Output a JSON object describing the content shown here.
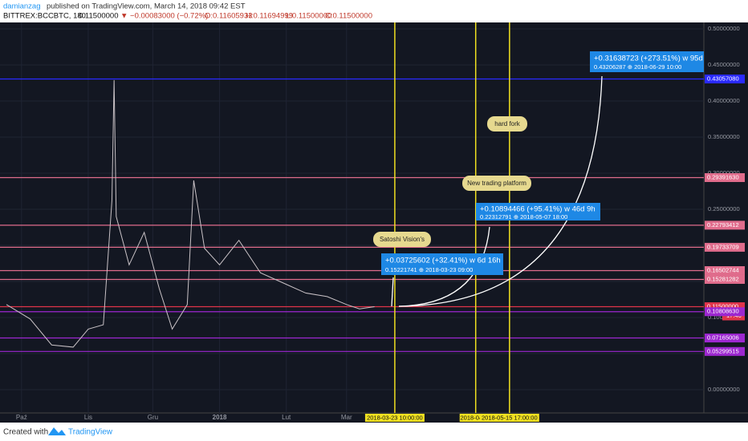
{
  "header": {
    "author": "damianzag",
    "published": "published on TradingView.com, March 14, 2018 09:42 EST",
    "symbol": "BITTREX:BCCBTC, 180",
    "last": "0.11500000",
    "change": "▼ −0.00083000 (−0.72%)",
    "ohlc": [
      "O:0.11605933",
      "H:0.11694999",
      "L:0.11500000",
      "C:0.11500000"
    ]
  },
  "chart_data": {
    "type": "line",
    "x": [
      "2017-09-24",
      "2017-10-05",
      "2017-10-15",
      "2017-10-25",
      "2017-11-01",
      "2017-11-08",
      "2017-11-12",
      "2017-11-13",
      "2017-11-14",
      "2017-11-20",
      "2017-11-27",
      "2017-12-04",
      "2017-12-10",
      "2017-12-17",
      "2017-12-20",
      "2017-12-25",
      "2018-01-01",
      "2018-01-10",
      "2018-01-20",
      "2018-02-01",
      "2018-02-10",
      "2018-02-20",
      "2018-03-01",
      "2018-03-07",
      "2018-03-14"
    ],
    "series": [
      {
        "color": "#c9c2c6",
        "values": [
          0.118,
          0.098,
          0.062,
          0.059,
          0.084,
          0.09,
          0.262,
          0.429,
          0.24,
          0.173,
          0.218,
          0.14,
          0.084,
          0.118,
          0.29,
          0.196,
          0.173,
          0.207,
          0.162,
          0.146,
          0.134,
          0.129,
          0.118,
          0.112,
          0.115
        ]
      }
    ],
    "xlim": [
      "2017-09-21",
      "2018-08-14"
    ],
    "xticks": [
      {
        "value": "2017-10-01",
        "label": "Paź"
      },
      {
        "value": "2017-11-01",
        "label": "Lis"
      },
      {
        "value": "2017-12-01",
        "label": "Gru"
      },
      {
        "value": "2018-01-01",
        "label": "2018"
      },
      {
        "value": "2018-02-01",
        "label": "Lut"
      },
      {
        "value": "2018-03-01",
        "label": "Mar"
      }
    ],
    "ylim": [
      -0.0322,
      0.5089
    ],
    "yticks": [
      {
        "value": 0.5,
        "label": "0.50000000"
      },
      {
        "value": 0.45,
        "label": "0.45000000"
      },
      {
        "value": 0.4,
        "label": "0.40000000"
      },
      {
        "value": 0.35,
        "label": "0.35000000"
      },
      {
        "value": 0.3,
        "label": "0.30000000"
      },
      {
        "value": 0.25,
        "label": "0.25000000"
      },
      {
        "value": 0.2,
        "label": "0.20000000"
      },
      {
        "value": 0.15,
        "label": "0.15000000"
      },
      {
        "value": 0.1,
        "label": "0.10000000"
      },
      {
        "value": 0.05,
        "label": "0.05000000"
      },
      {
        "value": 0,
        "label": "0.00000000"
      }
    ],
    "levels": [
      {
        "value": 0.4305708,
        "label": "0.43057080",
        "color": "#2a2aff"
      },
      {
        "value": 0.2939163,
        "label": "0.29391630",
        "color": "#e06c8c"
      },
      {
        "value": 0.22793412,
        "label": "0.22793412",
        "color": "#e06c8c"
      },
      {
        "value": 0.19733709,
        "label": "0.19733709",
        "color": "#e06c8c"
      },
      {
        "value": 0.16502744,
        "label": "0.16502744",
        "color": "#e06c8c"
      },
      {
        "value": 0.15281282,
        "label": "0.15281282",
        "color": "#e06c8c"
      },
      {
        "value": 0.115,
        "label": "0.11500000",
        "color": "#e0344a"
      },
      {
        "value": 0.1080863,
        "label": "0.10808630",
        "color": "#9c27d0"
      },
      {
        "value": 0.07165006,
        "label": "0.07165006",
        "color": "#9c27d0"
      },
      {
        "value": 0.05299515,
        "label": "0.05299515",
        "color": "#9c27d0"
      }
    ],
    "countdown": "17:46",
    "markers": [
      {
        "value": "2018-03-23 10:00:00",
        "color": "#f0e020"
      },
      {
        "value": "2018-04-30",
        "color": "#f0e020"
      },
      {
        "value": "2018-05-15 17:00:00",
        "color": "#f0e020"
      }
    ],
    "annotations": [
      "Satoshi Vision's",
      "New trading platform",
      "hard fork"
    ],
    "measures": [
      {
        "change": "+0.03725602 (+32.41%) w 6d 16h",
        "target": "0.15221741 ⊕ 2018-03-23 09:00"
      },
      {
        "change": "+0.10894466 (+95.41%) w 46d 9h",
        "target": "0.22312791 ⊕ 2018-05-07 18:00"
      },
      {
        "change": "+0.31638723 (+273.51%) w 95d",
        "target": "0.43206287 ⊕ 2018-06-29 10:00"
      }
    ]
  },
  "footer": {
    "created": "Created with",
    "brand": "TradingView"
  }
}
